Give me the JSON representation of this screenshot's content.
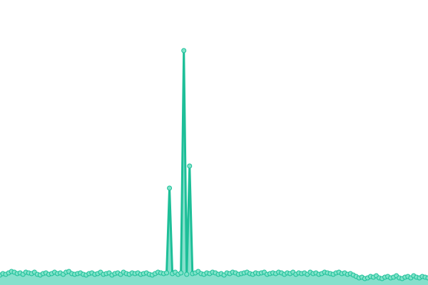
{
  "chart_data": {
    "type": "area",
    "values": [
      14,
      16,
      15,
      17,
      19,
      18,
      16,
      17,
      15,
      18,
      17,
      16,
      18,
      15,
      14,
      16,
      17,
      15,
      16,
      18,
      16,
      17,
      15,
      18,
      19,
      16,
      15,
      16,
      17,
      15,
      14,
      16,
      17,
      15,
      16,
      18,
      15,
      16,
      17,
      14,
      16,
      17,
      15,
      18,
      16,
      15,
      17,
      16,
      17,
      15,
      16,
      17,
      15,
      14,
      16,
      18,
      17,
      16,
      17,
      136,
      16,
      18,
      15,
      17,
      329,
      15,
      167,
      16,
      17,
      19,
      16,
      15,
      17,
      16,
      18,
      17,
      15,
      16,
      14,
      17,
      16,
      18,
      17,
      15,
      16,
      17,
      18,
      16,
      15,
      17,
      16,
      17,
      18,
      15,
      16,
      17,
      16,
      18,
      17,
      15,
      17,
      16,
      18,
      15,
      17,
      16,
      17,
      15,
      18,
      16,
      17,
      15,
      16,
      18,
      17,
      16,
      15,
      17,
      18,
      16,
      17,
      15,
      16,
      14,
      12,
      10,
      11,
      9,
      10,
      12,
      11,
      13,
      10,
      9,
      11,
      12,
      10,
      11,
      13,
      10,
      9,
      11,
      12,
      10,
      13,
      11,
      10,
      12,
      11,
      10
    ],
    "color": "#1dbf98",
    "fill_color": "#86e0cc",
    "marker_color": "#7fe3c9",
    "ylim": [
      0,
      400
    ],
    "markers": true
  }
}
